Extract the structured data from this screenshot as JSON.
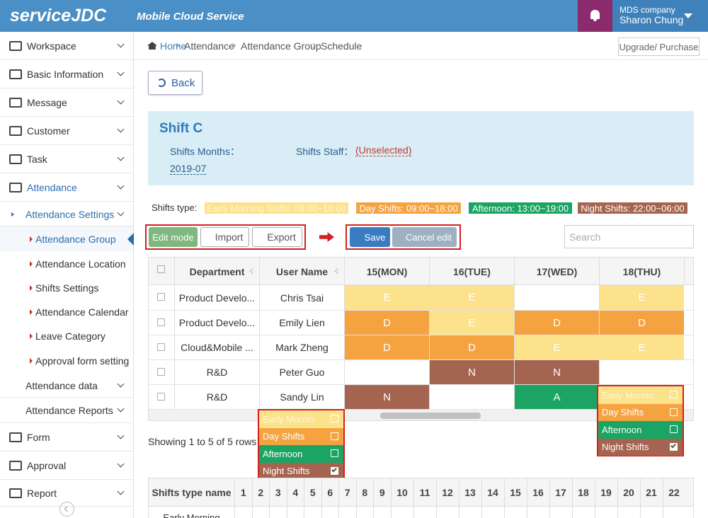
{
  "header": {
    "logo": "serviceJDC",
    "tagline": "Mobile Cloud Service",
    "company": "MDS company",
    "user": "Sharon Chung"
  },
  "sidebar": {
    "items": [
      "Workspace",
      "Basic Information",
      "Message",
      "Customer",
      "Task",
      "Attendance",
      "Attendance Settings",
      "Attendance Group",
      "Attendance Location",
      "Shifts Settings",
      "Attendance Calendar",
      "Leave Category",
      "Approval form setting",
      "Attendance data",
      "Attendance Reports",
      "Form",
      "Approval",
      "Report"
    ]
  },
  "breadcrumb": [
    "Home",
    "Attendance",
    "Attendance Group",
    "Schedule"
  ],
  "upgrade": "Upgrade/ Purchase",
  "back": "Back",
  "panel": {
    "title": "Shift C",
    "months_label": "Shifts Months：",
    "months_value": "2019-07",
    "staff_label": "Shifts Staff：",
    "staff_value": "(Unselected)"
  },
  "shift_types": {
    "label": "Shifts type:",
    "items": [
      "Early Morning Shifts: 08:00~18:00",
      "Day Shifts: 09:00~18:00",
      "Afternoon: 13:00~19:00",
      "Night Shifts: 22:00~06:00"
    ]
  },
  "toolbar": {
    "edit_mode": "Edit mode",
    "import": "Import",
    "export": "Export",
    "save": "Save",
    "cancel": "Cancel edit",
    "search": "Search"
  },
  "table": {
    "columns": [
      "Department",
      "User Name",
      "15(MON)",
      "16(TUE)",
      "17(WED)",
      "18(THU)"
    ],
    "rows": [
      [
        "Product Develo...",
        "Chris Tsai",
        "E",
        "E",
        null,
        "E"
      ],
      [
        "Product Develo...",
        "Emily Lien",
        "D",
        "E",
        "D",
        "D"
      ],
      [
        "Cloud&Mobile ...",
        "Mark Zheng",
        "D",
        "D",
        "E",
        "E"
      ],
      [
        "R&D",
        "Peter Guo",
        null,
        "N",
        "N",
        null
      ],
      [
        "R&D",
        "Sandy Lin",
        "N",
        null,
        "A",
        null
      ]
    ]
  },
  "popups": [
    {
      "options": [
        "Early Mornin",
        "Day Shifts",
        "Afternoon",
        "Night Shifts"
      ]
    },
    {
      "options": [
        "Early Mornin",
        "Day Shifts",
        "Afternoon",
        "Night Shifts"
      ]
    }
  ],
  "footer_info": "Showing 1 to 5 of 5 rows",
  "bottom_table": {
    "header": "Shifts type name",
    "days": [
      1,
      2,
      3,
      4,
      5,
      6,
      7,
      8,
      9,
      10,
      11,
      12,
      13,
      14,
      15,
      16,
      17,
      18,
      19,
      20,
      21,
      22
    ],
    "rows": [
      "Early Morning"
    ]
  }
}
